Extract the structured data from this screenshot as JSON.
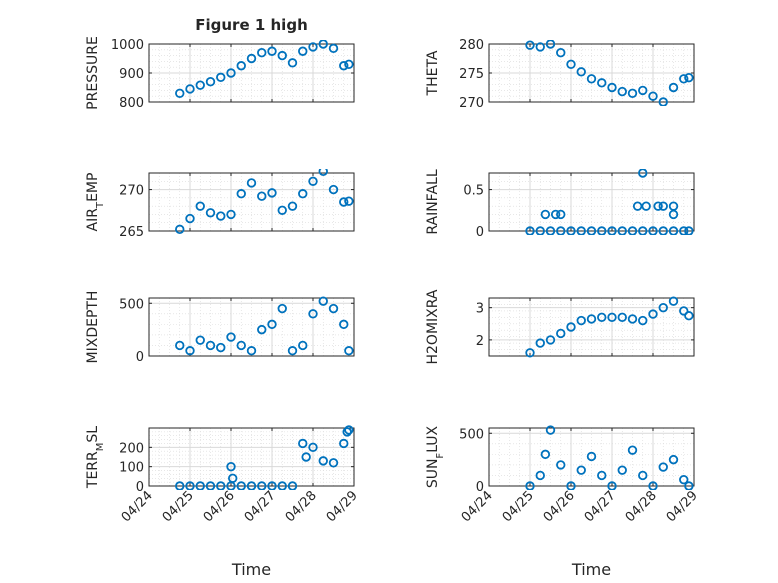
{
  "figure": {
    "title": "Figure 1 high",
    "xlabel": "Time",
    "date_ticks": [
      "04/24",
      "04/25",
      "04/26",
      "04/27",
      "04/28",
      "04/29"
    ],
    "marker_color": "#0072BD",
    "grid_color": "#d9d9d9",
    "axes_color": "#262626"
  },
  "chart_data": [
    {
      "type": "scatter",
      "ylabel": "PRESSURE",
      "xlim": [
        "04/24",
        "04/29"
      ],
      "ylim": [
        800,
        1000
      ],
      "yticks": [
        800,
        900,
        1000
      ],
      "grid": true,
      "minor_grid": true,
      "marker": "circle",
      "x": [
        "04/24 18:00",
        "04/25 00:00",
        "04/25 06:00",
        "04/25 12:00",
        "04/25 18:00",
        "04/26 00:00",
        "04/26 06:00",
        "04/26 12:00",
        "04/26 18:00",
        "04/27 00:00",
        "04/27 06:00",
        "04/27 12:00",
        "04/27 18:00",
        "04/28 00:00",
        "04/28 06:00",
        "04/28 12:00",
        "04/28 18:00",
        "04/28 21:00"
      ],
      "y": [
        830,
        845,
        858,
        870,
        885,
        900,
        925,
        950,
        970,
        975,
        960,
        935,
        975,
        990,
        1000,
        985,
        925,
        930
      ]
    },
    {
      "type": "scatter",
      "ylabel": "THETA",
      "xlim": [
        "04/24",
        "04/29"
      ],
      "ylim": [
        270,
        280
      ],
      "yticks": [
        270,
        275,
        280
      ],
      "grid": true,
      "minor_grid": true,
      "marker": "circle",
      "x": [
        "04/25 00:00",
        "04/25 06:00",
        "04/25 12:00",
        "04/25 18:00",
        "04/26 00:00",
        "04/26 06:00",
        "04/26 12:00",
        "04/26 18:00",
        "04/27 00:00",
        "04/27 06:00",
        "04/27 12:00",
        "04/27 18:00",
        "04/28 00:00",
        "04/28 06:00",
        "04/28 12:00",
        "04/28 18:00",
        "04/28 21:00"
      ],
      "y": [
        279.8,
        279.5,
        280.0,
        278.5,
        276.5,
        275.2,
        274.0,
        273.3,
        272.5,
        271.8,
        271.5,
        272.0,
        271.0,
        270.0,
        272.5,
        274.0,
        274.2
      ]
    },
    {
      "type": "scatter",
      "ylabel": "AIR_TEMP",
      "xlim": [
        "04/24",
        "04/29"
      ],
      "ylim": [
        265,
        272
      ],
      "yticks": [
        265,
        270
      ],
      "grid": true,
      "minor_grid": true,
      "marker": "circle",
      "x": [
        "04/24 18:00",
        "04/25 00:00",
        "04/25 06:00",
        "04/25 12:00",
        "04/25 18:00",
        "04/26 00:00",
        "04/26 06:00",
        "04/26 12:00",
        "04/26 18:00",
        "04/27 00:00",
        "04/27 06:00",
        "04/27 12:00",
        "04/27 18:00",
        "04/28 00:00",
        "04/28 06:00",
        "04/28 12:00",
        "04/28 18:00",
        "04/28 21:00"
      ],
      "y": [
        265.2,
        266.5,
        268.0,
        267.2,
        266.8,
        267.0,
        269.5,
        270.8,
        269.2,
        269.6,
        267.5,
        268.0,
        269.5,
        271.0,
        272.2,
        270.0,
        268.5,
        268.6
      ]
    },
    {
      "type": "scatter",
      "ylabel": "RAINFALL",
      "xlim": [
        "04/24",
        "04/29"
      ],
      "ylim": [
        0,
        0.7
      ],
      "yticks": [
        0,
        0.5
      ],
      "grid": true,
      "minor_grid": true,
      "marker": "circle",
      "x": [
        "04/25 00:00",
        "04/25 06:00",
        "04/25 12:00",
        "04/25 18:00",
        "04/26 00:00",
        "04/26 06:00",
        "04/26 12:00",
        "04/26 18:00",
        "04/27 00:00",
        "04/27 06:00",
        "04/27 12:00",
        "04/27 18:00",
        "04/28 00:00",
        "04/28 06:00",
        "04/28 12:00",
        "04/28 18:00",
        "04/28 21:00",
        "04/25 09:00",
        "04/25 15:00",
        "04/25 18:00",
        "04/27 15:00",
        "04/27 18:00",
        "04/27 20:00",
        "04/28 03:00",
        "04/28 06:00",
        "04/28 12:00",
        "04/28 12:00"
      ],
      "y": [
        0,
        0,
        0,
        0,
        0,
        0,
        0,
        0,
        0,
        0,
        0,
        0,
        0,
        0,
        0,
        0,
        0,
        0.2,
        0.2,
        0.2,
        0.3,
        0.7,
        0.3,
        0.3,
        0.3,
        0.3,
        0.2
      ]
    },
    {
      "type": "scatter",
      "ylabel": "MIXDEPTH",
      "xlim": [
        "04/24",
        "04/29"
      ],
      "ylim": [
        0,
        550
      ],
      "yticks": [
        0,
        500
      ],
      "grid": true,
      "minor_grid": true,
      "marker": "circle",
      "x": [
        "04/24 18:00",
        "04/25 00:00",
        "04/25 06:00",
        "04/25 12:00",
        "04/25 18:00",
        "04/26 00:00",
        "04/26 06:00",
        "04/26 12:00",
        "04/26 18:00",
        "04/27 00:00",
        "04/27 06:00",
        "04/27 12:00",
        "04/27 18:00",
        "04/28 00:00",
        "04/28 06:00",
        "04/28 12:00",
        "04/28 18:00",
        "04/28 21:00"
      ],
      "y": [
        100,
        50,
        150,
        100,
        80,
        180,
        100,
        50,
        250,
        300,
        450,
        50,
        100,
        400,
        520,
        450,
        300,
        50
      ]
    },
    {
      "type": "scatter",
      "ylabel": "H2OMIXRA",
      "xlim": [
        "04/24",
        "04/29"
      ],
      "ylim": [
        1.5,
        3.3
      ],
      "yticks": [
        2,
        3
      ],
      "grid": true,
      "minor_grid": true,
      "marker": "circle",
      "x": [
        "04/25 00:00",
        "04/25 06:00",
        "04/25 12:00",
        "04/25 18:00",
        "04/26 00:00",
        "04/26 06:00",
        "04/26 12:00",
        "04/26 18:00",
        "04/27 00:00",
        "04/27 06:00",
        "04/27 12:00",
        "04/27 18:00",
        "04/28 00:00",
        "04/28 06:00",
        "04/28 12:00",
        "04/28 18:00",
        "04/28 21:00"
      ],
      "y": [
        1.6,
        1.9,
        2.0,
        2.2,
        2.4,
        2.6,
        2.65,
        2.7,
        2.7,
        2.7,
        2.65,
        2.6,
        2.8,
        3.0,
        3.2,
        2.9,
        2.75
      ]
    },
    {
      "type": "scatter",
      "ylabel": "TERR_MSL",
      "xlim": [
        "04/24",
        "04/29"
      ],
      "ylim": [
        0,
        300
      ],
      "yticks": [
        0,
        100,
        200
      ],
      "grid": true,
      "minor_grid": true,
      "marker": "circle",
      "x": [
        "04/24 18:00",
        "04/25 00:00",
        "04/25 06:00",
        "04/25 12:00",
        "04/25 18:00",
        "04/26 00:00",
        "04/26 06:00",
        "04/26 12:00",
        "04/26 18:00",
        "04/27 00:00",
        "04/27 06:00",
        "04/27 12:00",
        "04/27 18:00",
        "04/28 00:00",
        "04/28 06:00",
        "04/28 12:00",
        "04/28 18:00",
        "04/28 21:00",
        "04/26 00:00",
        "04/26 01:00",
        "04/27 20:00",
        "04/28 20:00"
      ],
      "y": [
        0,
        0,
        0,
        0,
        0,
        0,
        0,
        0,
        0,
        0,
        0,
        0,
        220,
        200,
        130,
        120,
        220,
        290,
        100,
        40,
        150,
        280
      ]
    },
    {
      "type": "scatter",
      "ylabel": "SUN_FLUX",
      "xlim": [
        "04/24",
        "04/29"
      ],
      "ylim": [
        0,
        550
      ],
      "yticks": [
        0,
        500
      ],
      "grid": true,
      "minor_grid": true,
      "marker": "circle",
      "x": [
        "04/25 00:00",
        "04/25 06:00",
        "04/25 09:00",
        "04/25 12:00",
        "04/25 18:00",
        "04/26 00:00",
        "04/26 06:00",
        "04/26 12:00",
        "04/26 18:00",
        "04/27 00:00",
        "04/27 06:00",
        "04/27 12:00",
        "04/27 18:00",
        "04/28 00:00",
        "04/28 06:00",
        "04/28 12:00",
        "04/28 18:00",
        "04/28 21:00"
      ],
      "y": [
        0,
        100,
        300,
        530,
        200,
        0,
        150,
        280,
        100,
        0,
        150,
        340,
        100,
        0,
        180,
        250,
        60,
        0
      ]
    }
  ]
}
